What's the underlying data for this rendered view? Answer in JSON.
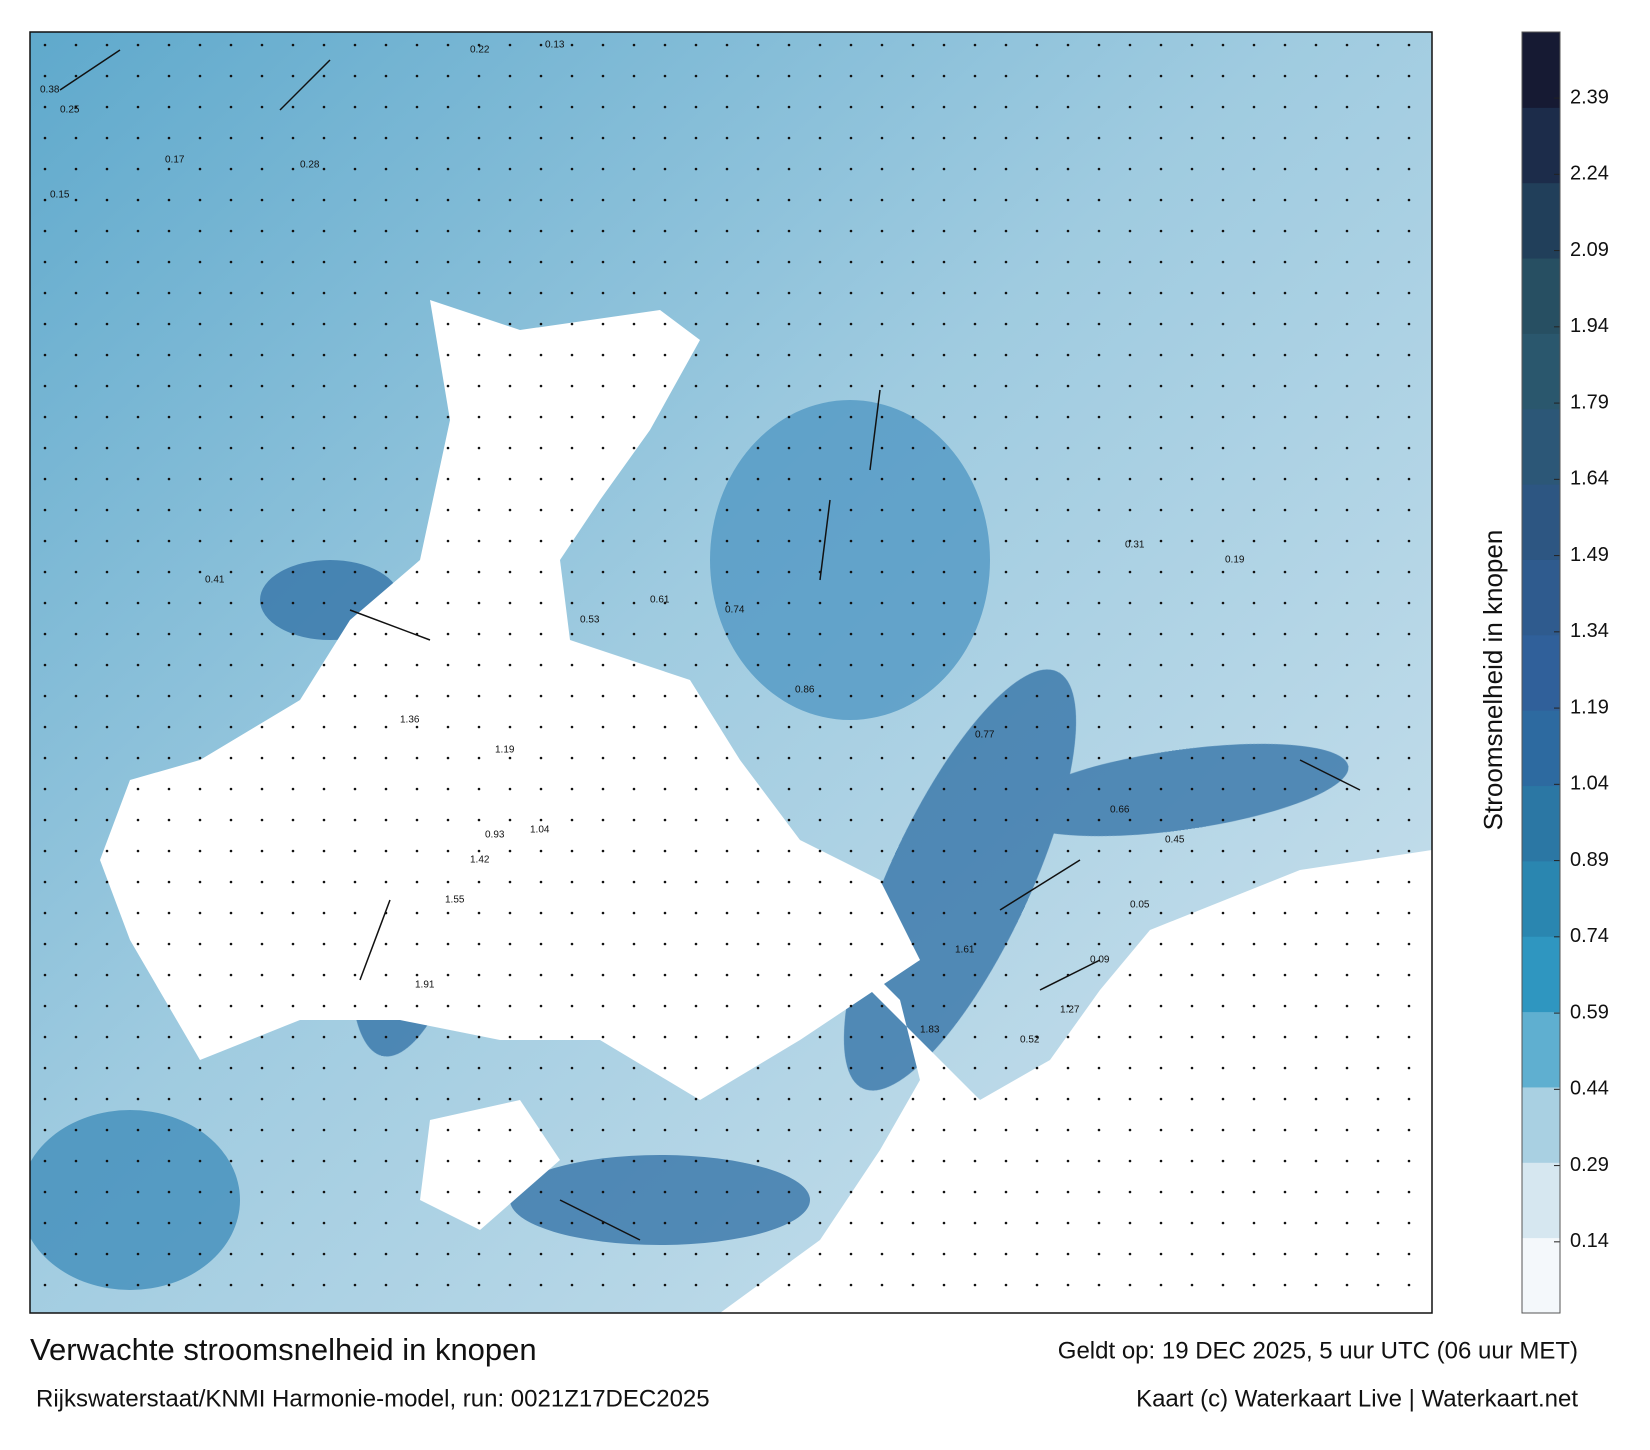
{
  "title": "Verwachte stroomsnelheid in knopen",
  "valid_time": "Geldt op: 19 DEC 2025, 5 uur UTC (06 uur MET)",
  "model": "Rijkswaterstaat/KNMI Harmonie-model, run: 0021Z17DEC2025",
  "credit": "Kaart (c) Waterkaart Live | Waterkaart.net",
  "colorbar": {
    "label": "Stroomsnelheid in knopen",
    "lim": [
      0,
      2.52
    ],
    "ticks": [
      0.14,
      0.29,
      0.44,
      0.59,
      0.74,
      0.89,
      1.04,
      1.19,
      1.34,
      1.49,
      1.64,
      1.79,
      1.94,
      2.09,
      2.24,
      2.39
    ],
    "colors": [
      "#f4f8fb",
      "#d6e7f0",
      "#a9d0e2",
      "#5fafd0",
      "#2f96c0",
      "#2a86b0",
      "#2b77a4",
      "#2d6aa0",
      "#30609a",
      "#2f5b8e",
      "#2d5682",
      "#2c5777",
      "#2a576d",
      "#274f62",
      "#213f5a",
      "#1c2c4a",
      "#161a33"
    ]
  },
  "map_labels": [
    "0.22",
    "0.13",
    "0.38",
    "0.25",
    "0.15",
    "0.17",
    "0.28",
    "0.41",
    "0.53",
    "0.61",
    "0.74",
    "0.86",
    "1.04",
    "1.19",
    "1.36",
    "1.42",
    "1.55",
    "1.61",
    "1.83",
    "1.91",
    "0.93",
    "0.77",
    "0.45",
    "0.09",
    "0.05",
    "0.31",
    "0.66",
    "1.27",
    "0.52",
    "0.19"
  ]
}
